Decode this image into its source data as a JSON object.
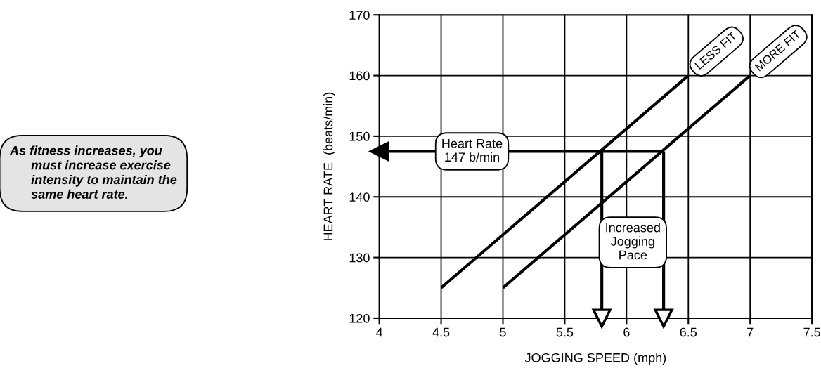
{
  "chart_data": {
    "type": "line",
    "xlabel": "JOGGING SPEED (mph)",
    "ylabel": "HEART RATE  (beats/min)",
    "xlim": [
      4,
      7.5
    ],
    "xticks": [
      4,
      4.5,
      5,
      5.5,
      6,
      6.5,
      7,
      7.5
    ],
    "ylim": [
      120,
      170
    ],
    "yticks": [
      120,
      130,
      140,
      150,
      160,
      170
    ],
    "grid": true,
    "series": [
      {
        "name": "LESS FIT",
        "color": "#000000",
        "x": [
          4.5,
          6.5
        ],
        "values": [
          125,
          160
        ]
      },
      {
        "name": "MORE FIT",
        "color": "#000000",
        "x": [
          5,
          7
        ],
        "values": [
          125,
          160
        ]
      },
      {
        "color": "#000000",
        "x": [
          6.3,
          4.0
        ],
        "values": [
          147.5,
          147.5
        ],
        "marker": "triangle"
      },
      {
        "color": "#000000",
        "x": [
          5.8,
          5.8
        ],
        "values": [
          147.5,
          120
        ],
        "marker": "triangle"
      },
      {
        "color": "#000000",
        "x": [
          6.3,
          6.3
        ],
        "values": [
          147.5,
          120
        ],
        "marker": "triangle"
      }
    ],
    "annotations": [
      {
        "text": "Heart Rate\n147 b/min",
        "x": 4.75,
        "y": 147.5
      },
      "Increased\nJogging\nPace",
      "As fitness increases, you\n      must increase exercise\n      intensity to maintain the\n      same heart rate."
    ]
  }
}
